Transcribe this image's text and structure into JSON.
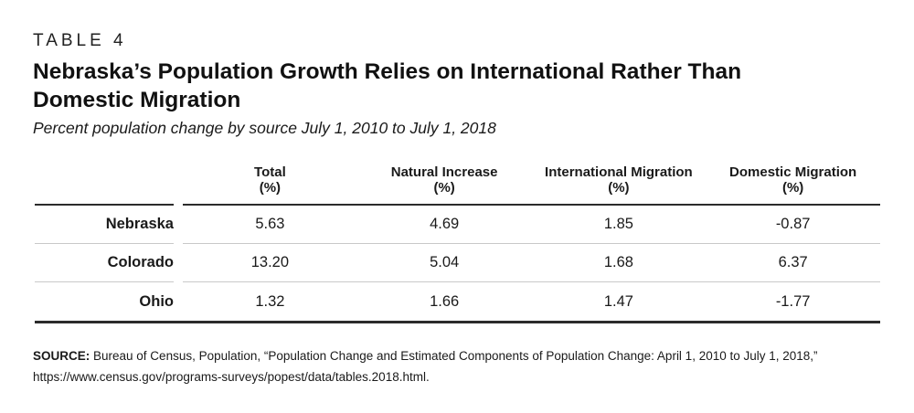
{
  "page": {
    "table_label": "TABLE 4",
    "title": "Nebraska’s Population Growth Relies on International Rather Than Domestic Migration",
    "subtitle": "Percent population change by source July 1, 2010 to July 1, 2018"
  },
  "table": {
    "columns": [
      "Total",
      "Natural Increase",
      "International Migration",
      "Domestic Migration"
    ],
    "unit_label": "(%)",
    "rows": [
      {
        "label": "Nebraska",
        "values": [
          "5.63",
          "4.69",
          "1.85",
          "-0.87"
        ]
      },
      {
        "label": "Colorado",
        "values": [
          "13.20",
          "5.04",
          "1.68",
          "6.37"
        ]
      },
      {
        "label": "Ohio",
        "values": [
          "1.32",
          "1.66",
          "1.47",
          "-1.77"
        ]
      }
    ]
  },
  "source": {
    "label": "SOURCE:",
    "text": " Bureau of Census, Population, “Population Change and Estimated Components of Population Change: April 1, 2010 to July 1, 2018,” https://www.census.gov/programs-surveys/popest/data/tables.2018.html."
  },
  "colors": {
    "background": "#ffffff",
    "text": "#1a1a1a",
    "rule_dark": "#2b2b2b",
    "rule_light": "#c9c9c9"
  },
  "chart_data": {
    "type": "table",
    "title": "Nebraska’s Population Growth Relies on International Rather Than Domestic Migration",
    "subtitle": "Percent population change by source July 1, 2010 to July 1, 2018",
    "categories": [
      "Total (%)",
      "Natural Increase (%)",
      "International Migration (%)",
      "Domestic Migration (%)"
    ],
    "series": [
      {
        "name": "Nebraska",
        "values": [
          5.63,
          4.69,
          1.85,
          -0.87
        ]
      },
      {
        "name": "Colorado",
        "values": [
          13.2,
          5.04,
          1.68,
          6.37
        ]
      },
      {
        "name": "Ohio",
        "values": [
          1.32,
          1.66,
          1.47,
          -1.77
        ]
      }
    ]
  }
}
